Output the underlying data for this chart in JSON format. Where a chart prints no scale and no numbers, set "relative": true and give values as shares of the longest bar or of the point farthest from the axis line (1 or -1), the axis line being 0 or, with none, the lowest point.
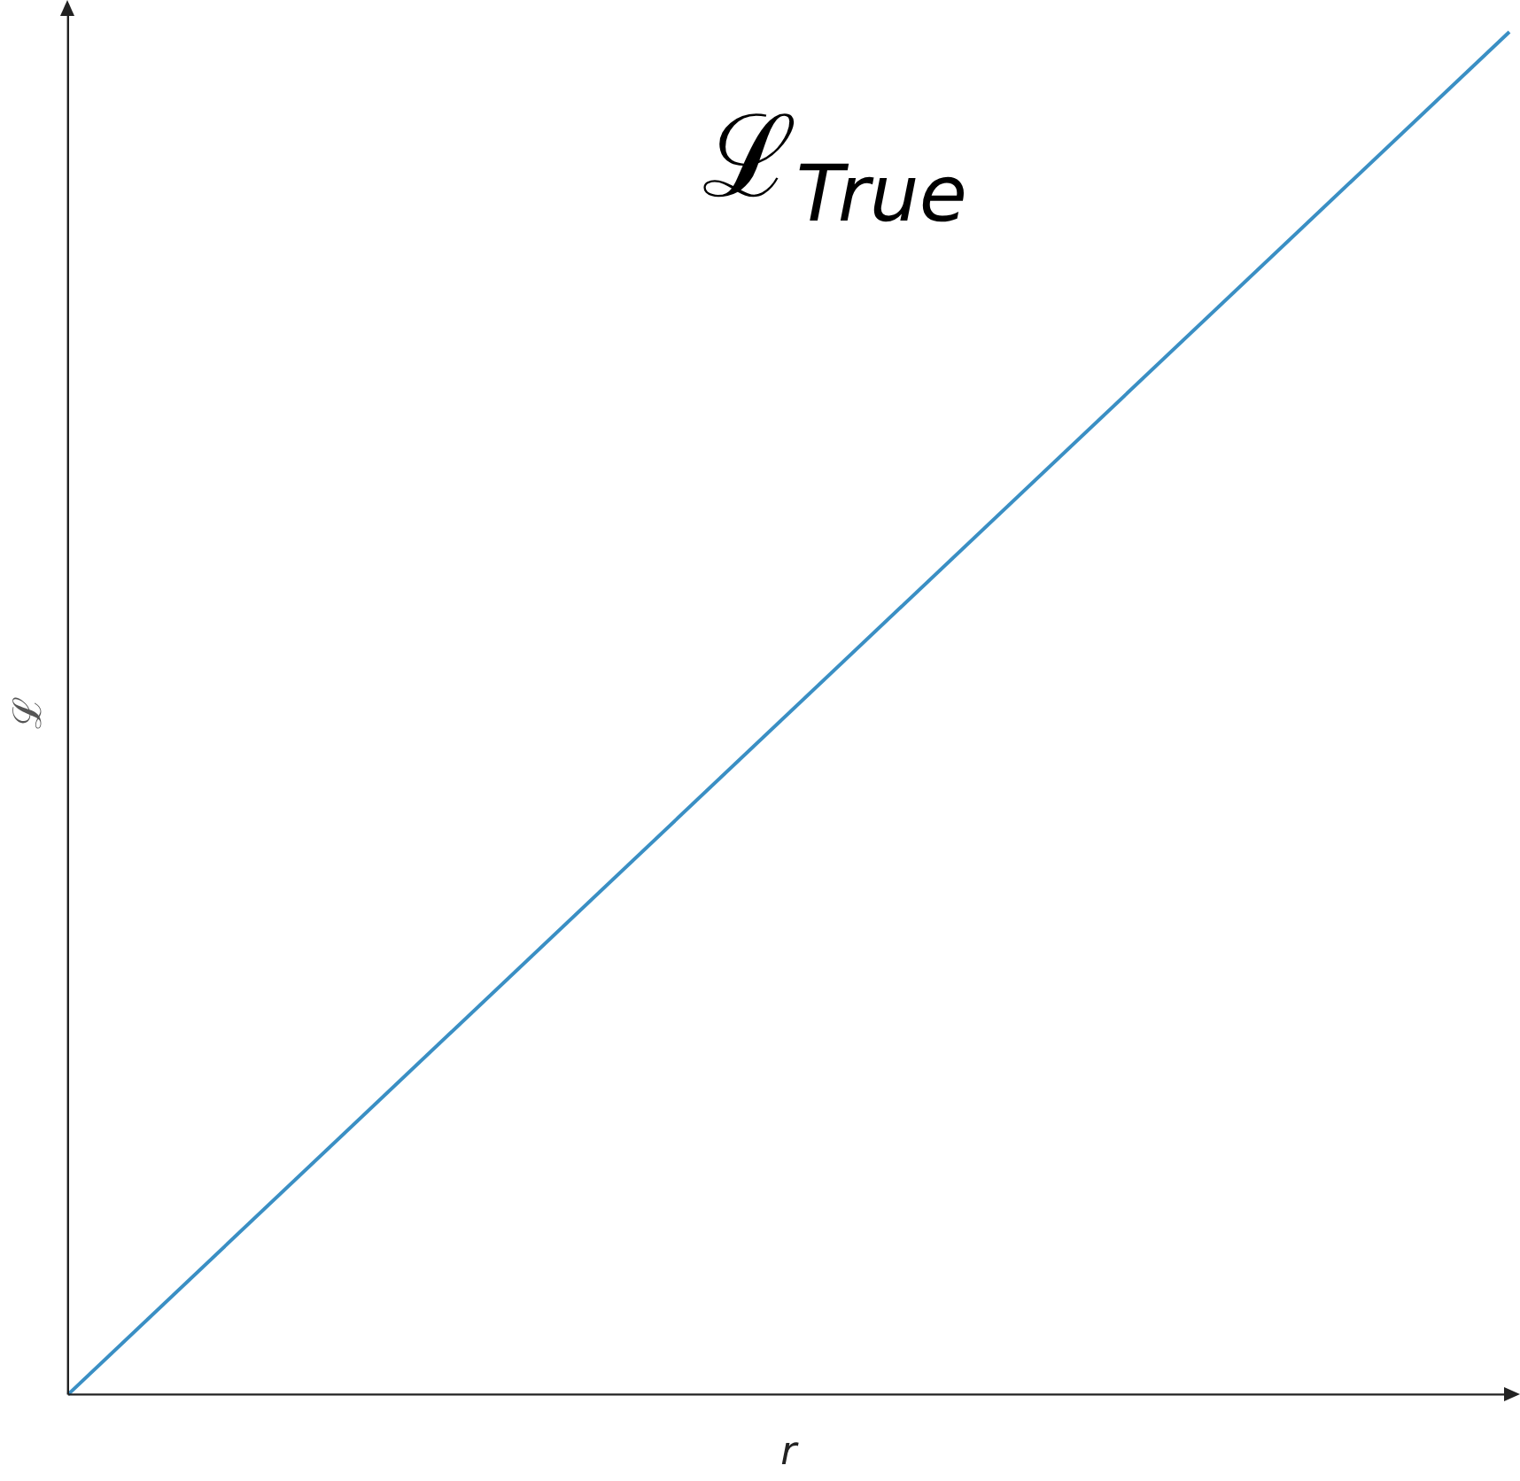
{
  "chart_data": {
    "type": "line",
    "relative": true,
    "xlabel": "r",
    "ylabel": "ℒ",
    "categories": [
      null,
      null
    ],
    "series": [
      {
        "name": "ℒ$_{True}$",
        "color": "#3a8fc4",
        "values": [
          0,
          1
        ]
      }
    ],
    "grid": false,
    "legend": false,
    "marker": "none",
    "line_style": "solid"
  }
}
